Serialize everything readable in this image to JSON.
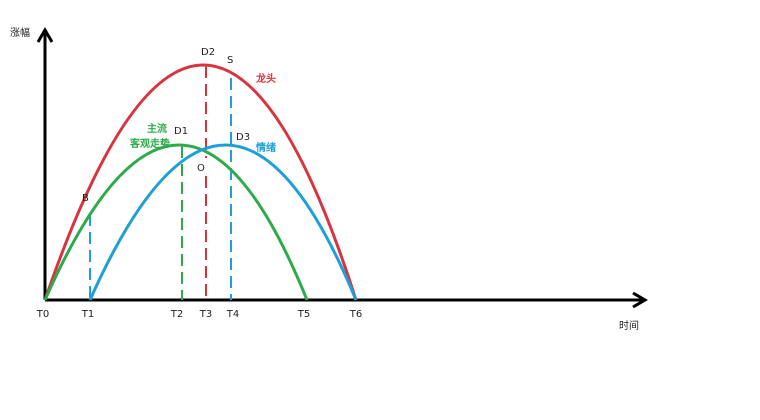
{
  "axes": {
    "y_label": "涨幅",
    "x_label": "时间"
  },
  "ticks": [
    "T0",
    "T1",
    "T2",
    "T3",
    "T4",
    "T5",
    "T6"
  ],
  "points": {
    "D2": "D2",
    "S": "S",
    "D1": "D1",
    "D3": "D3",
    "O": "O",
    "B": "B"
  },
  "curves": {
    "leader": "龙头",
    "main_1": "主流",
    "main_2": "客观走势",
    "sentiment": "情绪"
  }
}
